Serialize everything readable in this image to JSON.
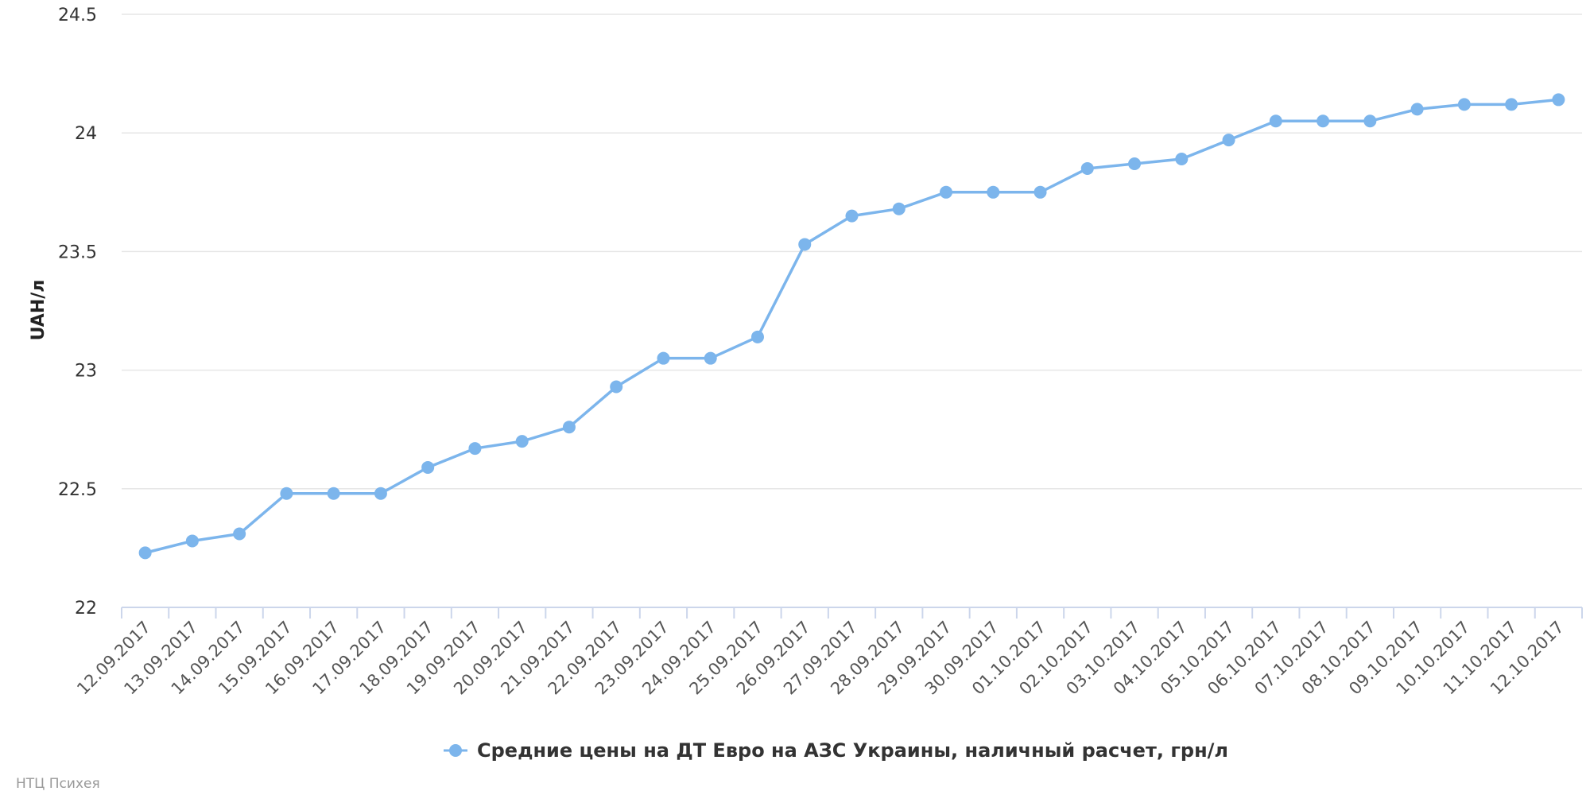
{
  "chart_data": {
    "type": "line",
    "x": [
      "12.09.2017",
      "13.09.2017",
      "14.09.2017",
      "15.09.2017",
      "16.09.2017",
      "17.09.2017",
      "18.09.2017",
      "19.09.2017",
      "20.09.2017",
      "21.09.2017",
      "22.09.2017",
      "23.09.2017",
      "24.09.2017",
      "25.09.2017",
      "26.09.2017",
      "27.09.2017",
      "28.09.2017",
      "29.09.2017",
      "30.09.2017",
      "01.10.2017",
      "02.10.2017",
      "03.10.2017",
      "04.10.2017",
      "05.10.2017",
      "06.10.2017",
      "07.10.2017",
      "08.10.2017",
      "09.10.2017",
      "10.10.2017",
      "11.10.2017",
      "12.10.2017"
    ],
    "series": [
      {
        "name": "Средние цены на ДТ Евро на АЗС Украины, наличный расчет, грн/л",
        "color": "#7cb5ec",
        "values": [
          22.23,
          22.28,
          22.31,
          22.48,
          22.48,
          22.48,
          22.59,
          22.67,
          22.7,
          22.76,
          22.93,
          23.05,
          23.05,
          23.14,
          23.53,
          23.65,
          23.68,
          23.75,
          23.75,
          23.75,
          23.85,
          23.87,
          23.89,
          23.97,
          24.05,
          24.05,
          24.05,
          24.1,
          24.12,
          24.12,
          24.14
        ]
      }
    ],
    "xlabel": "",
    "ylabel": "UAH/л",
    "ylim": [
      22,
      24.5
    ],
    "yticks": [
      "22",
      "22.5",
      "23",
      "23.5",
      "24",
      "24.5"
    ],
    "grid": true,
    "legend": "bottom-center"
  },
  "credit": "НТЦ Психея"
}
